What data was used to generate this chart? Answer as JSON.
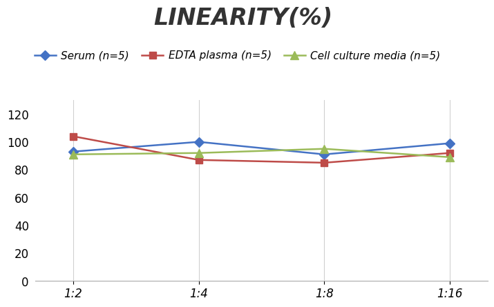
{
  "title": "LINEARITY(%)",
  "x_labels": [
    "1:2",
    "1:4",
    "1:8",
    "1:16"
  ],
  "x_values": [
    0,
    1,
    2,
    3
  ],
  "series": [
    {
      "label": "Serum (n=5)",
      "values": [
        93,
        100,
        91,
        99
      ],
      "color": "#4472C4",
      "marker": "D",
      "markersize": 7,
      "linewidth": 1.8
    },
    {
      "label": "EDTA plasma (n=5)",
      "values": [
        104,
        87,
        85,
        92
      ],
      "color": "#BE4B48",
      "marker": "s",
      "markersize": 7,
      "linewidth": 1.8
    },
    {
      "label": "Cell culture media (n=5)",
      "values": [
        91,
        92,
        95,
        89
      ],
      "color": "#9BBB59",
      "marker": "^",
      "markersize": 8,
      "linewidth": 1.8
    }
  ],
  "ylim": [
    0,
    130
  ],
  "yticks": [
    0,
    20,
    40,
    60,
    80,
    100,
    120
  ],
  "background_color": "#ffffff",
  "title_fontsize": 24,
  "legend_fontsize": 11,
  "tick_fontsize": 12,
  "grid_color": "#d0d0d0"
}
